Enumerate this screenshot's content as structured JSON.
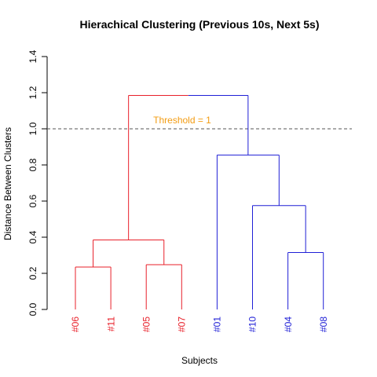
{
  "chart_data": {
    "type": "dendrogram",
    "title": "Hierachical Clustering (Previous 10s, Next 5s)",
    "xlabel": "Subjects",
    "ylabel": "Distance Between Clusters",
    "ylim": [
      0,
      1.4
    ],
    "yticks": [
      0.0,
      0.2,
      0.4,
      0.6,
      0.8,
      1.0,
      1.2,
      1.4
    ],
    "ytick_labels": [
      "0.0",
      "0.2",
      "0.4",
      "0.6",
      "0.8",
      "1.0",
      "1.2",
      "1.4"
    ],
    "grid": false,
    "leaves": [
      {
        "label": "#06",
        "cluster": "red"
      },
      {
        "label": "#11",
        "cluster": "red"
      },
      {
        "label": "#05",
        "cluster": "red"
      },
      {
        "label": "#07",
        "cluster": "red"
      },
      {
        "label": "#01",
        "cluster": "blue"
      },
      {
        "label": "#10",
        "cluster": "blue"
      },
      {
        "label": "#04",
        "cluster": "blue"
      },
      {
        "label": "#08",
        "cluster": "blue"
      }
    ],
    "merges": [
      {
        "left": "#06",
        "right": "#11",
        "height": 0.235,
        "color": "red"
      },
      {
        "left": "#05",
        "right": "#07",
        "height": 0.248,
        "color": "red"
      },
      {
        "left": "#04",
        "right": "#08",
        "height": 0.315,
        "color": "blue"
      },
      {
        "left": "m1",
        "right": "m2",
        "height": 0.385,
        "color": "red"
      },
      {
        "left": "#10",
        "right": "m3",
        "height": 0.575,
        "color": "blue"
      },
      {
        "left": "#01",
        "right": "m5",
        "height": 0.855,
        "color": "blue"
      },
      {
        "left": "m4",
        "right": "m6",
        "height": 1.185,
        "color": "split"
      }
    ],
    "threshold": {
      "value": 1.0,
      "label": "Threshold = 1",
      "style": "dashed"
    },
    "colors": {
      "red": "#e8202a",
      "blue": "#1f1fd6",
      "threshold_line": "#555555",
      "threshold_text": "#f39c12"
    }
  }
}
